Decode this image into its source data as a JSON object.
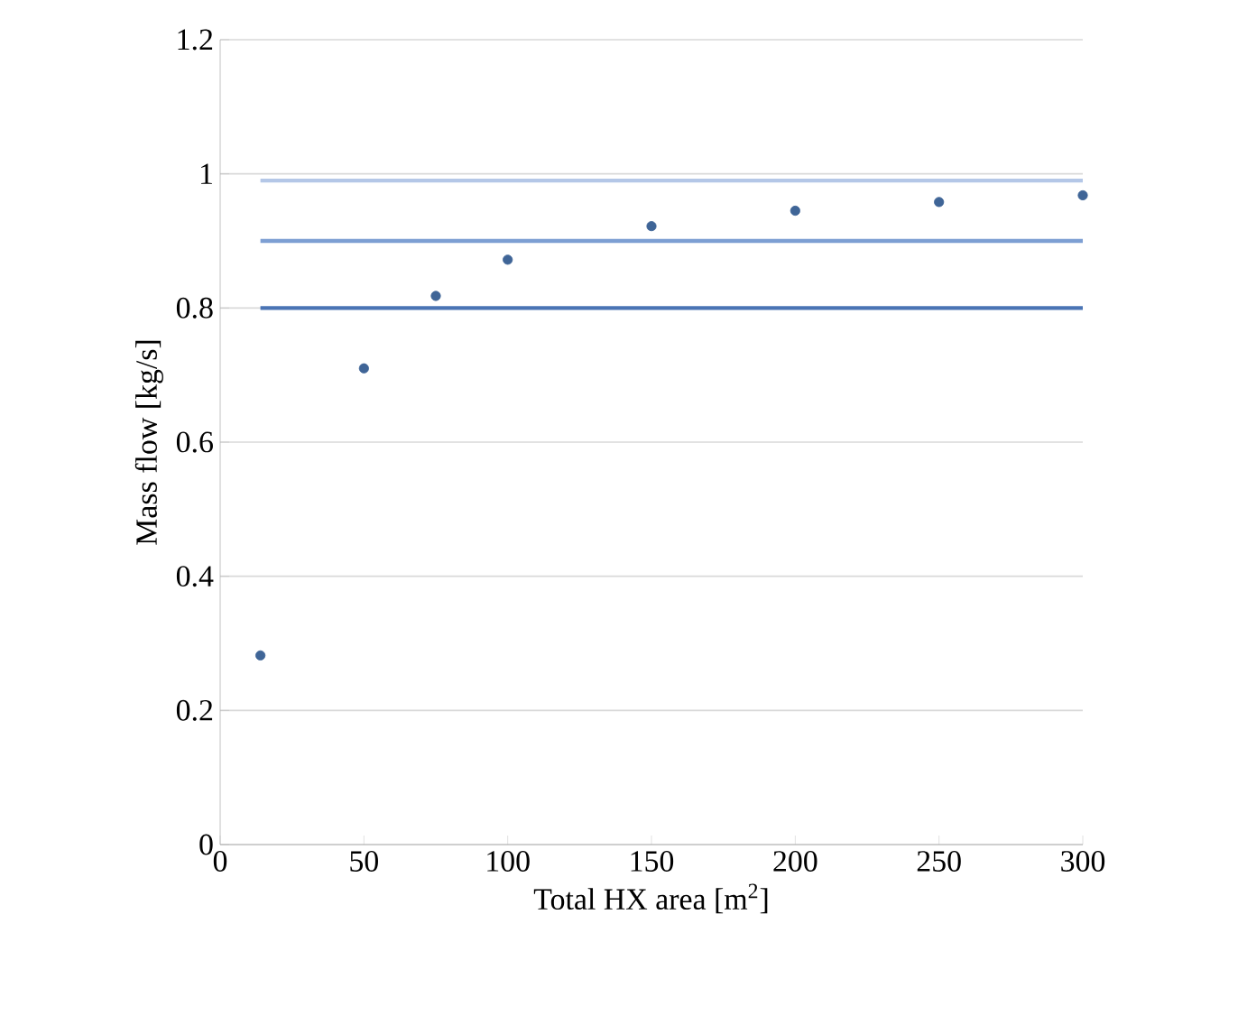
{
  "chart_data": {
    "type": "scatter",
    "xlabel": "Total HX area [m$^{2}$]",
    "ylabel": "Mass flow [kg/s]",
    "xlim": [
      0,
      300
    ],
    "xticks": [
      0,
      50,
      100,
      150,
      200,
      250,
      300
    ],
    "ylim": [
      0,
      1.2
    ],
    "yticks": [
      0,
      0.2,
      0.4,
      0.6,
      0.8,
      1,
      1.2
    ],
    "grid": "y",
    "series": [
      {
        "type": "line",
        "marker": "none",
        "color": "#4a74b4",
        "x": [
          14,
          300
        ],
        "values": [
          0.8,
          0.8
        ]
      },
      {
        "type": "line",
        "marker": "none",
        "color": "#7d9fd3",
        "x": [
          14,
          300
        ],
        "values": [
          0.9,
          0.9
        ]
      },
      {
        "type": "line",
        "marker": "none",
        "color": "#b4c7e7",
        "x": [
          14,
          300
        ],
        "values": [
          0.99,
          0.99
        ]
      },
      {
        "marker": "circle",
        "color": "#3f6597",
        "x": [
          14,
          50,
          75,
          100,
          150,
          200,
          250,
          300
        ],
        "values": [
          0.282,
          0.71,
          0.818,
          0.872,
          0.922,
          0.945,
          0.958,
          0.968
        ]
      }
    ]
  }
}
